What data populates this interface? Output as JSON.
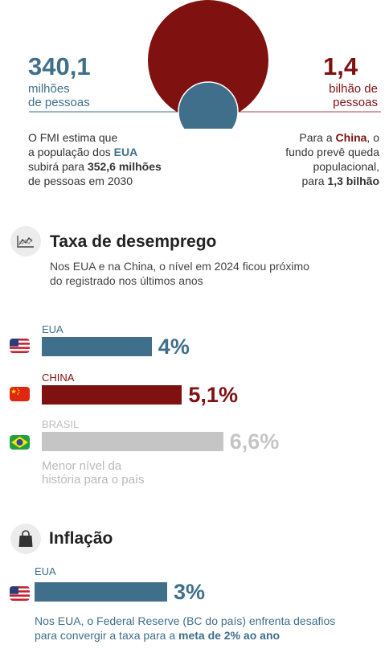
{
  "population": {
    "usa": {
      "value": "340,1",
      "unit_line1": "milhões",
      "unit_line2": "de pessoas",
      "text_parts": [
        {
          "t": "O FMI estima que",
          "br": true
        },
        {
          "t": "a população dos "
        },
        {
          "t": "EUA",
          "style": "bold-teal",
          "br": true
        },
        {
          "t": "subirá para "
        },
        {
          "t": "352,6 milhões",
          "style": "bold",
          "br": true
        },
        {
          "t": "de pessoas em 2030"
        }
      ]
    },
    "china": {
      "value": "1,4",
      "unit_line1": "bilhão de",
      "unit_line2": "pessoas",
      "text_parts": [
        {
          "t": "Para a "
        },
        {
          "t": "China",
          "style": "bold-red"
        },
        {
          "t": ", o",
          "br": true
        },
        {
          "t": "fundo prevê queda",
          "br": true
        },
        {
          "t": "populacional,",
          "br": true
        },
        {
          "t": "para "
        },
        {
          "t": "1,3 bilhão",
          "style": "bold"
        }
      ]
    },
    "circles": [
      {
        "name": "china",
        "value": 1.4,
        "color": "#7f1111"
      },
      {
        "name": "usa",
        "value": 0.3401,
        "color": "#3f6f8a"
      }
    ]
  },
  "unemployment": {
    "title": "Taxa de desemprego",
    "subtitle_line1": "Nos EUA e na China, o nível em 2024 ficou próximo",
    "subtitle_line2": "do registrado nos últimos anos",
    "icon": "line-chart-icon",
    "note_line1": "Menor nível da",
    "note_line2": "história para o país"
  },
  "inflation": {
    "title": "Inflação",
    "icon": "shopping-bag-icon",
    "text_line1": "Nos EUA, o Federal Reserve (BC do país) enfrenta desafios",
    "text_parts_line2": [
      {
        "t": "para convergir a taxa para a "
      },
      {
        "t": "meta de 2% ao ano",
        "style": "bold"
      }
    ]
  },
  "chart_data": [
    {
      "type": "bar",
      "title": "Taxa de desemprego",
      "unit": "%",
      "categories": [
        "EUA",
        "CHINA",
        "BRASIL"
      ],
      "values": [
        4,
        5.1,
        6.6
      ],
      "value_labels": [
        "4%",
        "5,1%",
        "6,6%"
      ],
      "colors": [
        "#3f6f8a",
        "#7f1111",
        "#c5c5c5"
      ],
      "flags": [
        "us-flag-icon",
        "china-flag-icon",
        "brazil-flag-icon"
      ]
    },
    {
      "type": "bar",
      "title": "Inflação",
      "unit": "%",
      "categories": [
        "EUA"
      ],
      "values": [
        3
      ],
      "value_labels": [
        "3%"
      ],
      "colors": [
        "#3f6f8a"
      ],
      "flags": [
        "us-flag-icon"
      ]
    }
  ]
}
